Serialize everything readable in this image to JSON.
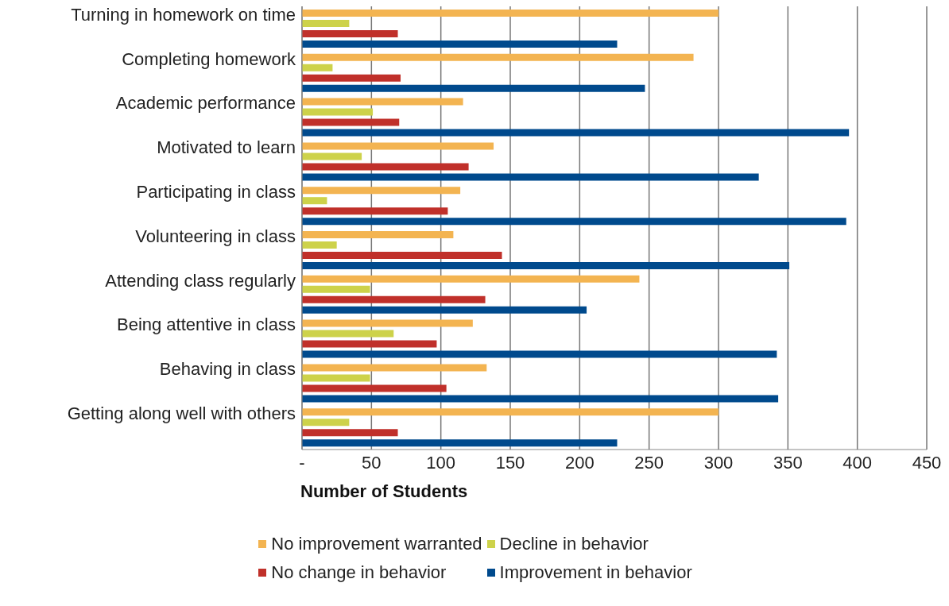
{
  "chart_data": {
    "type": "bar",
    "orientation": "horizontal",
    "xlabel": "Number of Students",
    "categories": [
      "Turning in homework on time",
      "Completing homework",
      "Academic performance",
      "Motivated to learn",
      "Participating in class",
      "Volunteering in class",
      "Attending class regularly",
      "Being attentive in class",
      "Behaving in class",
      "Getting along well with others"
    ],
    "series": [
      {
        "name": "No improvement warranted",
        "color": "#f3b451",
        "values": [
          300,
          282,
          116,
          138,
          114,
          109,
          243,
          123,
          133,
          300
        ]
      },
      {
        "name": "Decline in behavior",
        "color": "#cdd24a",
        "values": [
          34,
          22,
          51,
          43,
          18,
          25,
          49,
          66,
          49,
          34
        ]
      },
      {
        "name": "No change in behavior",
        "color": "#c0302a",
        "values": [
          69,
          71,
          70,
          120,
          105,
          144,
          132,
          97,
          104,
          69
        ]
      },
      {
        "name": "Improvement in behavior",
        "color": "#004a8d",
        "values": [
          227,
          247,
          394,
          329,
          392,
          351,
          205,
          342,
          343,
          227
        ]
      }
    ],
    "xlim": [
      0,
      450
    ],
    "xticks": [
      {
        "value": 0,
        "label": "-"
      },
      50,
      100,
      150,
      200,
      250,
      300,
      350,
      400,
      450
    ],
    "grid": "x",
    "legend": "bottom"
  }
}
